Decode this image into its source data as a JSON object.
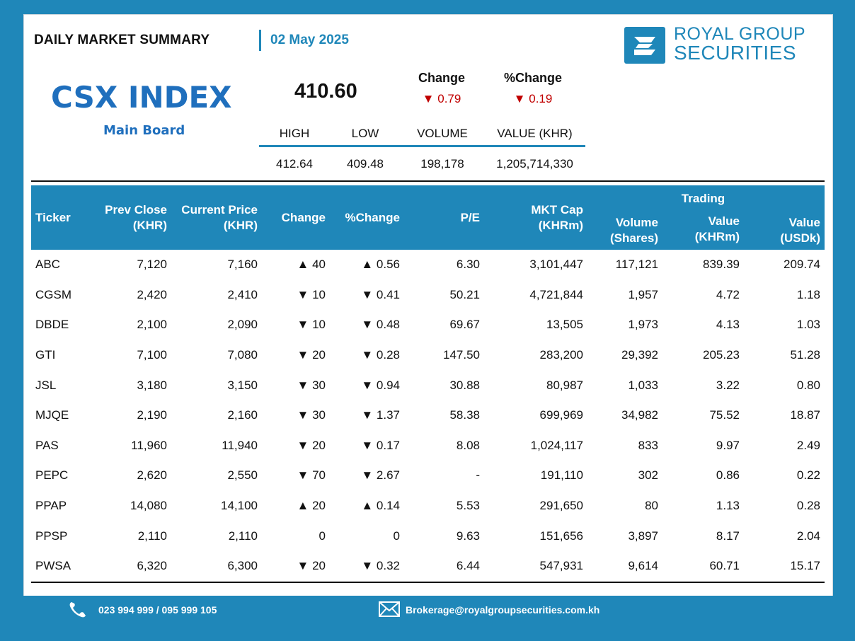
{
  "header": {
    "title": "DAILY MARKET SUMMARY",
    "date": "02 May 2025"
  },
  "brand": {
    "name_line1": "ROYAL GROUP",
    "name_line2": "SECURITIES",
    "color": "#1f87b9"
  },
  "index": {
    "name": "CSX INDEX",
    "board": "Main Board",
    "value": "410.60",
    "change_label": "Change",
    "change_value": "0.79",
    "pct_change_label": "%Change",
    "pct_change_value": "0.19",
    "direction": "down"
  },
  "stats": {
    "headers": [
      "HIGH",
      "LOW",
      "VOLUME",
      "VALUE (KHR)"
    ],
    "values": [
      "412.64",
      "409.48",
      "198,178",
      "1,205,714,330"
    ]
  },
  "table": {
    "group_header": "Trading",
    "headers": {
      "ticker": "Ticker",
      "prev_close_1": "Prev Close",
      "prev_close_2": "(KHR)",
      "current_price_1": "Current Price",
      "current_price_2": "(KHR)",
      "change": "Change",
      "pct_change": "%Change",
      "pe": "P/E",
      "mkt_cap_1": "MKT Cap",
      "mkt_cap_2": "(KHRm)",
      "volume_1": "Volume",
      "volume_2": "(Shares)",
      "value_khr_1": "Value",
      "value_khr_2": "(KHRm)",
      "value_usd_1": "Value",
      "value_usd_2": "(USDk)"
    },
    "rows": [
      {
        "ticker": "ABC",
        "prev": "7,120",
        "cur": "7,160",
        "dir": "up",
        "chg": "40",
        "pct": "0.56",
        "pe": "6.30",
        "mcap": "3,101,447",
        "vol": "117,121",
        "vkhr": "839.39",
        "vusd": "209.74"
      },
      {
        "ticker": "CGSM",
        "prev": "2,420",
        "cur": "2,410",
        "dir": "down",
        "chg": "10",
        "pct": "0.41",
        "pe": "50.21",
        "mcap": "4,721,844",
        "vol": "1,957",
        "vkhr": "4.72",
        "vusd": "1.18"
      },
      {
        "ticker": "DBDE",
        "prev": "2,100",
        "cur": "2,090",
        "dir": "down",
        "chg": "10",
        "pct": "0.48",
        "pe": "69.67",
        "mcap": "13,505",
        "vol": "1,973",
        "vkhr": "4.13",
        "vusd": "1.03"
      },
      {
        "ticker": "GTI",
        "prev": "7,100",
        "cur": "7,080",
        "dir": "down",
        "chg": "20",
        "pct": "0.28",
        "pe": "147.50",
        "mcap": "283,200",
        "vol": "29,392",
        "vkhr": "205.23",
        "vusd": "51.28"
      },
      {
        "ticker": "JSL",
        "prev": "3,180",
        "cur": "3,150",
        "dir": "down",
        "chg": "30",
        "pct": "0.94",
        "pe": "30.88",
        "mcap": "80,987",
        "vol": "1,033",
        "vkhr": "3.22",
        "vusd": "0.80"
      },
      {
        "ticker": "MJQE",
        "prev": "2,190",
        "cur": "2,160",
        "dir": "down",
        "chg": "30",
        "pct": "1.37",
        "pe": "58.38",
        "mcap": "699,969",
        "vol": "34,982",
        "vkhr": "75.52",
        "vusd": "18.87"
      },
      {
        "ticker": "PAS",
        "prev": "11,960",
        "cur": "11,940",
        "dir": "down",
        "chg": "20",
        "pct": "0.17",
        "pe": "8.08",
        "mcap": "1,024,117",
        "vol": "833",
        "vkhr": "9.97",
        "vusd": "2.49"
      },
      {
        "ticker": "PEPC",
        "prev": "2,620",
        "cur": "2,550",
        "dir": "down",
        "chg": "70",
        "pct": "2.67",
        "pe": "-",
        "mcap": "191,110",
        "vol": "302",
        "vkhr": "0.86",
        "vusd": "0.22"
      },
      {
        "ticker": "PPAP",
        "prev": "14,080",
        "cur": "14,100",
        "dir": "up",
        "chg": "20",
        "pct": "0.14",
        "pe": "5.53",
        "mcap": "291,650",
        "vol": "80",
        "vkhr": "1.13",
        "vusd": "0.28"
      },
      {
        "ticker": "PPSP",
        "prev": "2,110",
        "cur": "2,110",
        "dir": "flat",
        "chg": "0",
        "pct": "0",
        "pe": "9.63",
        "mcap": "151,656",
        "vol": "3,897",
        "vkhr": "8.17",
        "vusd": "2.04"
      },
      {
        "ticker": "PWSA",
        "prev": "6,320",
        "cur": "6,300",
        "dir": "down",
        "chg": "20",
        "pct": "0.32",
        "pe": "6.44",
        "mcap": "547,931",
        "vol": "9,614",
        "vkhr": "60.71",
        "vusd": "15.17"
      }
    ]
  },
  "footer": {
    "phone": "023 994 999 / 095 999 105",
    "email": "Brokerage@royalgroupsecurities.com.kh"
  }
}
